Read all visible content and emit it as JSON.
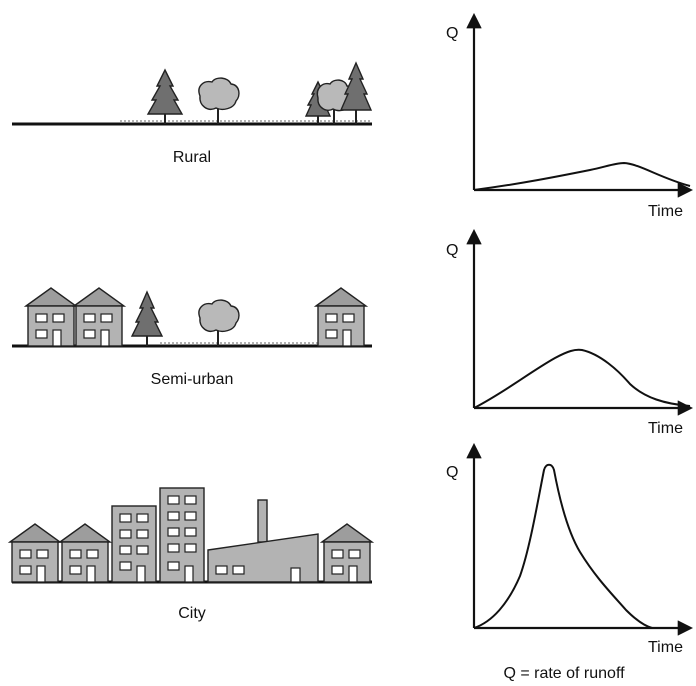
{
  "scenes": [
    {
      "label": "Rural"
    },
    {
      "label": "Semi-urban"
    },
    {
      "label": "City"
    }
  ],
  "graphs": {
    "y_label": "Q",
    "x_label": "Time",
    "panels": [
      {
        "name": "rural"
      },
      {
        "name": "semi-urban"
      },
      {
        "name": "city"
      }
    ]
  },
  "footnote": "Q = rate of runoff"
}
